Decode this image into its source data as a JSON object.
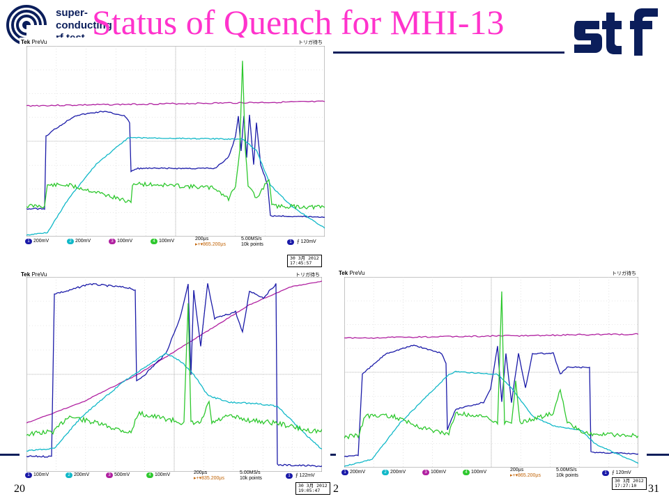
{
  "header": {
    "logo_text": [
      "super-",
      "conducting",
      "rf test"
    ],
    "title": "Status of Quench for MHI-13",
    "brand_logo_text": "stf"
  },
  "footer": {
    "left": "20",
    "center": "2",
    "right": "31"
  },
  "colors": {
    "ch1": "#1a1aa8",
    "ch2": "#10b8c8",
    "ch3": "#b020a0",
    "ch4": "#2ec82e",
    "title": "#ff33cc",
    "rule": "#0b1e5b"
  },
  "scopes": [
    {
      "id": "top",
      "brand": "Tek",
      "mode": "PreVu",
      "trigger_label": "トリガ待ち",
      "channel_markers": [
        "3",
        "4",
        "1",
        "2"
      ],
      "ch_settings": [
        {
          "ch": "1",
          "scale": "200mV"
        },
        {
          "ch": "2",
          "scale": "200mV"
        },
        {
          "ch": "3",
          "scale": "100mV"
        },
        {
          "ch": "4",
          "scale": "100mV"
        }
      ],
      "timebase": "200µs",
      "delay": "▸+▾865.200µs",
      "sample_rate": "5.00MS/s",
      "record": "10k points",
      "trigger_ch": "1",
      "trigger_level": "120mV",
      "date": "30 3月  2012",
      "time": "17:45:57"
    },
    {
      "id": "bottom-left",
      "brand": "Tek",
      "mode": "PreVu",
      "trigger_label": "トリガ待ち",
      "channel_markers": [
        "4",
        "2",
        "3"
      ],
      "ch_settings": [
        {
          "ch": "1",
          "scale": "100mV"
        },
        {
          "ch": "2",
          "scale": "200mV"
        },
        {
          "ch": "3",
          "scale": "500mV"
        },
        {
          "ch": "4",
          "scale": "100mV"
        }
      ],
      "timebase": "200µs",
      "delay": "▸+▾835.200µs",
      "sample_rate": "5.00MS/s",
      "record": "10k points",
      "trigger_ch": "1",
      "trigger_level": "122mV",
      "date": "30 3月  2012",
      "time": "19:05:47"
    },
    {
      "id": "bottom-right",
      "brand": "Tek",
      "mode": "PreVu",
      "trigger_label": "トリガ待ち",
      "channel_markers": [
        "3",
        "4",
        "1",
        "2"
      ],
      "ch_settings": [
        {
          "ch": "1",
          "scale": "200mV"
        },
        {
          "ch": "2",
          "scale": "200mV"
        },
        {
          "ch": "3",
          "scale": "100mV"
        },
        {
          "ch": "4",
          "scale": "100mV"
        }
      ],
      "timebase": "200µs",
      "delay": "▸+▾865.200µs",
      "sample_rate": "5.00MS/s",
      "record": "10k points",
      "trigger_ch": "1",
      "trigger_level": "120mV",
      "date": "30 3月  2012",
      "time": "17:27:10"
    }
  ]
}
